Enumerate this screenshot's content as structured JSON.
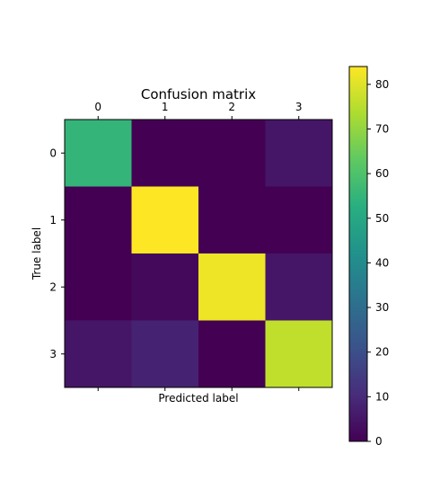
{
  "chart_data": {
    "type": "heatmap",
    "title": "Confusion matrix",
    "xlabel": "Predicted label",
    "ylabel": "True label",
    "x_categories": [
      "0",
      "1",
      "2",
      "3"
    ],
    "y_categories": [
      "0",
      "1",
      "2",
      "3"
    ],
    "values": [
      [
        55,
        0,
        0,
        5
      ],
      [
        0,
        84,
        0,
        0
      ],
      [
        0,
        2,
        82,
        5
      ],
      [
        5,
        8,
        0,
        76
      ]
    ],
    "colorbar": {
      "range": [
        0,
        84
      ],
      "ticks": [
        0,
        10,
        20,
        30,
        40,
        50,
        60,
        70,
        80
      ],
      "colormap": "viridis"
    },
    "grid": false,
    "x_ticks_position": "top"
  }
}
